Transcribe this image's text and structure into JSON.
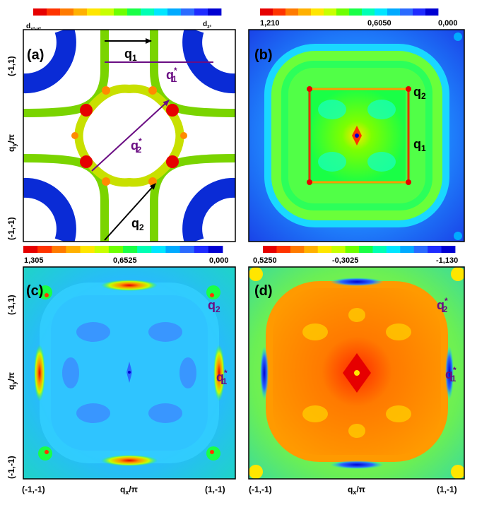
{
  "panels": [
    {
      "id": "a",
      "label": "(a)",
      "colorbar": {
        "left_label_main": "d",
        "left_label_sub": "x²-y²",
        "right_label_main": "d",
        "right_label_sub": "z²"
      },
      "annotations": {
        "q1": "q",
        "q1_sub": "1",
        "q1s": "q",
        "q1s_sub": "1",
        "q2": "q",
        "q2_sub": "2",
        "q2s": "q",
        "q2s_sub": "2",
        "star": "*"
      }
    },
    {
      "id": "b",
      "label": "(b)",
      "colorbar": {
        "ticks": [
          "1,210",
          "0,6050",
          "0,000"
        ]
      },
      "annotations": {
        "q2": "q",
        "q2_sub": "2",
        "q1": "q",
        "q1_sub": "1"
      }
    },
    {
      "id": "c",
      "label": "(c)",
      "colorbar": {
        "ticks": [
          "1,305",
          "0,6525",
          "0,000"
        ]
      },
      "annotations": {
        "q2": "q",
        "q2_sub": "2",
        "q1s": "q",
        "q1s_sub": "1",
        "star": "*"
      }
    },
    {
      "id": "d",
      "label": "(d)",
      "colorbar": {
        "ticks": [
          "0,5250",
          "-0,3025",
          "-1,130"
        ]
      },
      "annotations": {
        "q2s": "q",
        "q2s_sub": "2",
        "q1s": "q",
        "q1s_sub": "1",
        "star": "*"
      }
    }
  ],
  "axes": {
    "y_label_main": "q",
    "y_label_sub": "y",
    "y_label_tail": "/π",
    "x_label_main": "q",
    "x_label_sub": "x",
    "x_label_tail": "/π",
    "top_corner": "(-1,1)",
    "bottom_corner": "(-1,-1)",
    "right_corner": "(1,-1)"
  },
  "colors": {
    "rainbow": [
      "#e60000",
      "#ff3300",
      "#ff7a00",
      "#ffb000",
      "#ffe600",
      "#c8ff00",
      "#6eff00",
      "#19ff46",
      "#00ffb4",
      "#00e6ff",
      "#00aaff",
      "#2a6aff",
      "#1e2bff",
      "#0000d2"
    ],
    "d_orbital_band": "#0a2bd6",
    "arrow_black": "#000000",
    "arrow_purple": "#6a0d83",
    "purple_text": "#6a0d83"
  }
}
